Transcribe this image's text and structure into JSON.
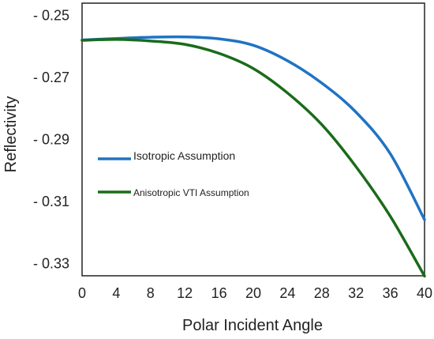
{
  "chart_data": {
    "type": "line",
    "title": "",
    "xlabel": "Polar Incident Angle",
    "ylabel": "Reflectivity",
    "xlim": [
      0,
      40
    ],
    "ylim": [
      -0.334,
      -0.246
    ],
    "x_ticks": [
      0,
      4,
      8,
      12,
      16,
      20,
      24,
      28,
      32,
      36,
      40
    ],
    "x_tick_labels": [
      "0",
      "4",
      "8",
      "12",
      "16",
      "20",
      "24",
      "28",
      "32",
      "36",
      "40"
    ],
    "y_ticks": [
      -0.25,
      -0.27,
      -0.29,
      -0.31,
      -0.33
    ],
    "y_tick_labels": [
      "- 0.25",
      "- 0.27",
      "- 0.29",
      "- 0.31",
      "- 0.33"
    ],
    "grid": false,
    "legend_position": "center-left",
    "x": [
      0,
      4,
      8,
      12,
      16,
      20,
      24,
      28,
      32,
      36,
      40
    ],
    "series": [
      {
        "name": "Isotropic Assumption",
        "color": "#1f73c4",
        "values": [
          -0.2579,
          -0.2574,
          -0.257,
          -0.2569,
          -0.2575,
          -0.2596,
          -0.2646,
          -0.2718,
          -0.2812,
          -0.2946,
          -0.3159
        ]
      },
      {
        "name": "Anisotropic VTI Assumption",
        "color": "#1a6b1a",
        "values": [
          -0.258,
          -0.2577,
          -0.2582,
          -0.2593,
          -0.2622,
          -0.2671,
          -0.275,
          -0.2852,
          -0.2988,
          -0.3148,
          -0.3341
        ]
      }
    ]
  }
}
